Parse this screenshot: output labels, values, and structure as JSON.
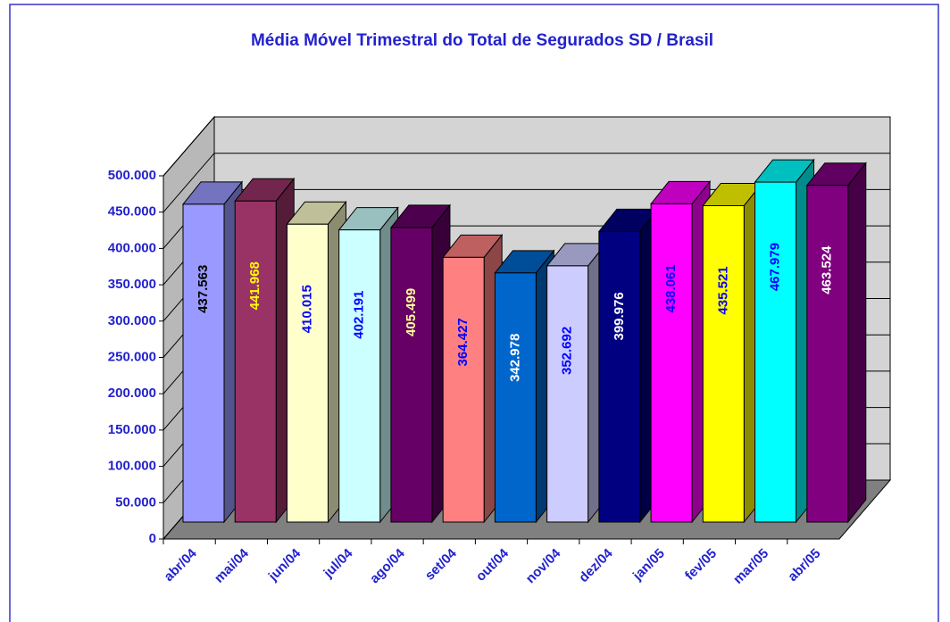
{
  "chart_data": {
    "type": "bar3d",
    "title": "Média Móvel Trimestral do Total de Segurados SD / Brasil",
    "categories": [
      "abr/04",
      "mai/04",
      "jun/04",
      "jul/04",
      "ago/04",
      "set/04",
      "out/04",
      "nov/04",
      "dez/04",
      "jan/05",
      "fev/05",
      "mar/05",
      "abr/05"
    ],
    "values": [
      437563,
      441968,
      410015,
      402191,
      405499,
      364427,
      342978,
      352692,
      399976,
      438061,
      435521,
      467979,
      463524
    ],
    "value_labels": [
      "437.563",
      "441.968",
      "410.015",
      "402.191",
      "405.499",
      "364.427",
      "342.978",
      "352.692",
      "399.976",
      "438.061",
      "435.521",
      "467.979",
      "463.524"
    ],
    "colors": [
      "#9999ff",
      "#993366",
      "#ffffcc",
      "#ccffff",
      "#660066",
      "#ff8080",
      "#0066cc",
      "#ccccff",
      "#000080",
      "#ff00ff",
      "#ffff00",
      "#00ffff",
      "#800080"
    ],
    "label_colors": [
      "#000000",
      "#ffff00",
      "#0000ff",
      "#0000ff",
      "#ffff99",
      "#0000ff",
      "#ffffff",
      "#0000ff",
      "#ffffff",
      "#0000ff",
      "#0000ff",
      "#0000ff",
      "#ffffff"
    ],
    "ylim": [
      0,
      500000
    ],
    "yticks": [
      0,
      {
        "value": 50000,
        "label": "50.000"
      },
      {
        "value": 100000,
        "label": "100.000"
      },
      {
        "value": 150000,
        "label": "150.000"
      },
      {
        "value": 200000,
        "label": "200.000"
      },
      {
        "value": 250000,
        "label": "250.000"
      },
      {
        "value": 300000,
        "label": "300.000"
      },
      {
        "value": 350000,
        "label": "350.000"
      },
      {
        "value": 400000,
        "label": "400.000"
      },
      {
        "value": 450000,
        "label": "450.000"
      },
      {
        "value": 500000,
        "label": "500.000"
      }
    ],
    "grid": true
  }
}
